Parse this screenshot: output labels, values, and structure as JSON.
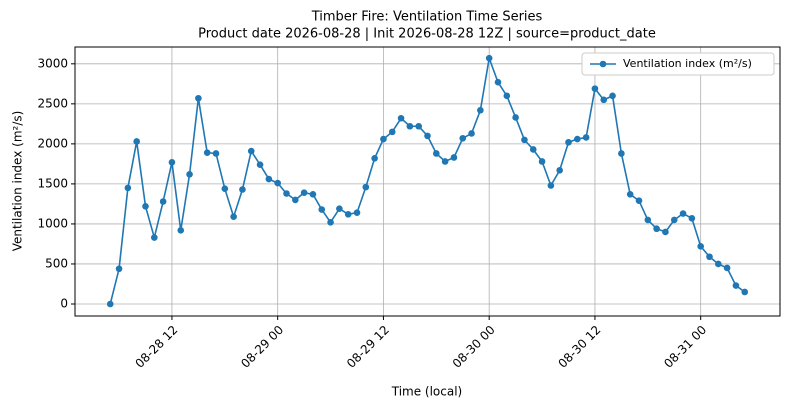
{
  "chart_data": {
    "type": "line",
    "title": "Timber Fire: Ventilation Time Series",
    "subtitle": "Product date 2026-08-28 | Init 2026-08-28 12Z | source=product_date",
    "x_label": "Time (local)",
    "y_label": "Ventilation index (m²/s)",
    "x": [
      "08-28 05",
      "08-28 06",
      "08-28 07",
      "08-28 08",
      "08-28 09",
      "08-28 10",
      "08-28 11",
      "08-28 12",
      "08-28 13",
      "08-28 14",
      "08-28 15",
      "08-28 16",
      "08-28 17",
      "08-28 18",
      "08-28 19",
      "08-28 20",
      "08-28 21",
      "08-28 22",
      "08-28 23",
      "08-29 00",
      "08-29 01",
      "08-29 02",
      "08-29 03",
      "08-29 04",
      "08-29 05",
      "08-29 06",
      "08-29 07",
      "08-29 08",
      "08-29 09",
      "08-29 10",
      "08-29 11",
      "08-29 12",
      "08-29 13",
      "08-29 14",
      "08-29 15",
      "08-29 16",
      "08-29 17",
      "08-29 18",
      "08-29 19",
      "08-29 20",
      "08-29 21",
      "08-29 22",
      "08-29 23",
      "08-30 00",
      "08-30 01",
      "08-30 02",
      "08-30 03",
      "08-30 04",
      "08-30 05",
      "08-30 06",
      "08-30 07",
      "08-30 08",
      "08-30 09",
      "08-30 10",
      "08-30 11",
      "08-30 12",
      "08-30 13",
      "08-30 14",
      "08-30 15",
      "08-30 16",
      "08-30 17",
      "08-30 18",
      "08-30 19",
      "08-30 20",
      "08-30 21",
      "08-30 22",
      "08-30 23",
      "08-31 00",
      "08-31 01",
      "08-31 02",
      "08-31 03",
      "08-31 04",
      "08-31 05"
    ],
    "series": [
      {
        "name": "Ventilation index (m²/s)",
        "color": "#1f77b4",
        "values": [
          0,
          440,
          1450,
          2030,
          1220,
          830,
          1280,
          1770,
          920,
          1620,
          2570,
          1890,
          1880,
          1440,
          1090,
          1430,
          1910,
          1740,
          1560,
          1510,
          1380,
          1300,
          1390,
          1370,
          1180,
          1020,
          1190,
          1120,
          1140,
          1460,
          1820,
          2060,
          2150,
          2320,
          2220,
          2220,
          2100,
          1880,
          1780,
          1830,
          2070,
          2130,
          2420,
          3070,
          2770,
          2600,
          2330,
          2050,
          1930,
          1780,
          1480,
          1670,
          2020,
          2060,
          2080,
          2690,
          2550,
          2600,
          1880,
          1370,
          1290,
          1050,
          940,
          900,
          1050,
          1130,
          1070,
          720,
          590,
          500,
          450,
          230,
          150
        ]
      }
    ],
    "xlim": [
      "08-28 01",
      "08-31 09"
    ],
    "xticks": [
      "08-28 12",
      "08-29 00",
      "08-29 12",
      "08-30 00",
      "08-30 12",
      "08-31 00"
    ],
    "ylim": [
      -150,
      3210
    ],
    "yticks": [
      0,
      500,
      1000,
      1500,
      2000,
      2500,
      3000
    ],
    "grid": true,
    "legend": "upper right"
  }
}
